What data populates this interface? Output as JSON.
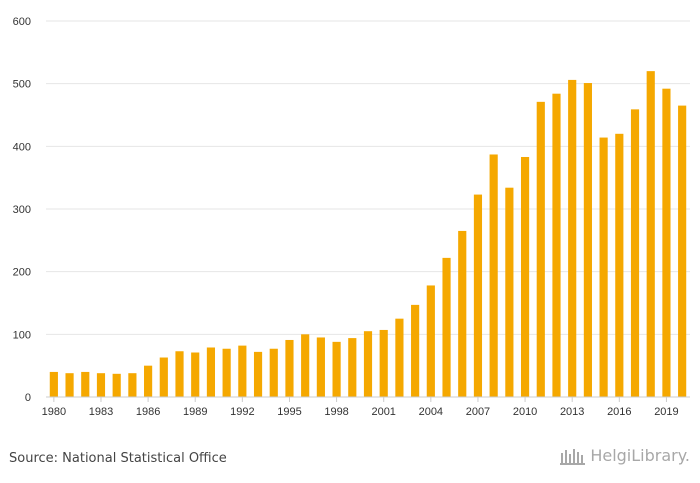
{
  "chart_data": {
    "type": "bar",
    "title": "",
    "xlabel": "",
    "ylabel": "",
    "ylim": [
      0,
      600
    ],
    "y_ticks": [
      0,
      100,
      200,
      300,
      400,
      500,
      600
    ],
    "grid": true,
    "bar_color": "#f5a800",
    "grid_color": "#e6e6e6",
    "categories": [
      "1980",
      "1981",
      "1982",
      "1983",
      "1984",
      "1985",
      "1986",
      "1987",
      "1988",
      "1989",
      "1990",
      "1991",
      "1992",
      "1993",
      "1994",
      "1995",
      "1996",
      "1997",
      "1998",
      "1999",
      "2000",
      "2001",
      "2002",
      "2003",
      "2004",
      "2005",
      "2006",
      "2007",
      "2008",
      "2009",
      "2010",
      "2011",
      "2012",
      "2013",
      "2014",
      "2015",
      "2016",
      "2017",
      "2018",
      "2019",
      "2020"
    ],
    "x_tick_labels": [
      "1980",
      "1983",
      "1986",
      "1989",
      "1992",
      "1995",
      "1998",
      "2001",
      "2004",
      "2007",
      "2010",
      "2013",
      "2016",
      "2019"
    ],
    "values": [
      40,
      38,
      40,
      38,
      37,
      38,
      50,
      63,
      73,
      71,
      79,
      77,
      82,
      72,
      77,
      91,
      100,
      95,
      88,
      94,
      105,
      107,
      125,
      147,
      178,
      222,
      265,
      323,
      387,
      334,
      383,
      471,
      484,
      506,
      501,
      414,
      420,
      459,
      520,
      492,
      465
    ]
  },
  "footer": {
    "source": "Source: National Statistical Office",
    "brand": "HelgiLibrary."
  }
}
